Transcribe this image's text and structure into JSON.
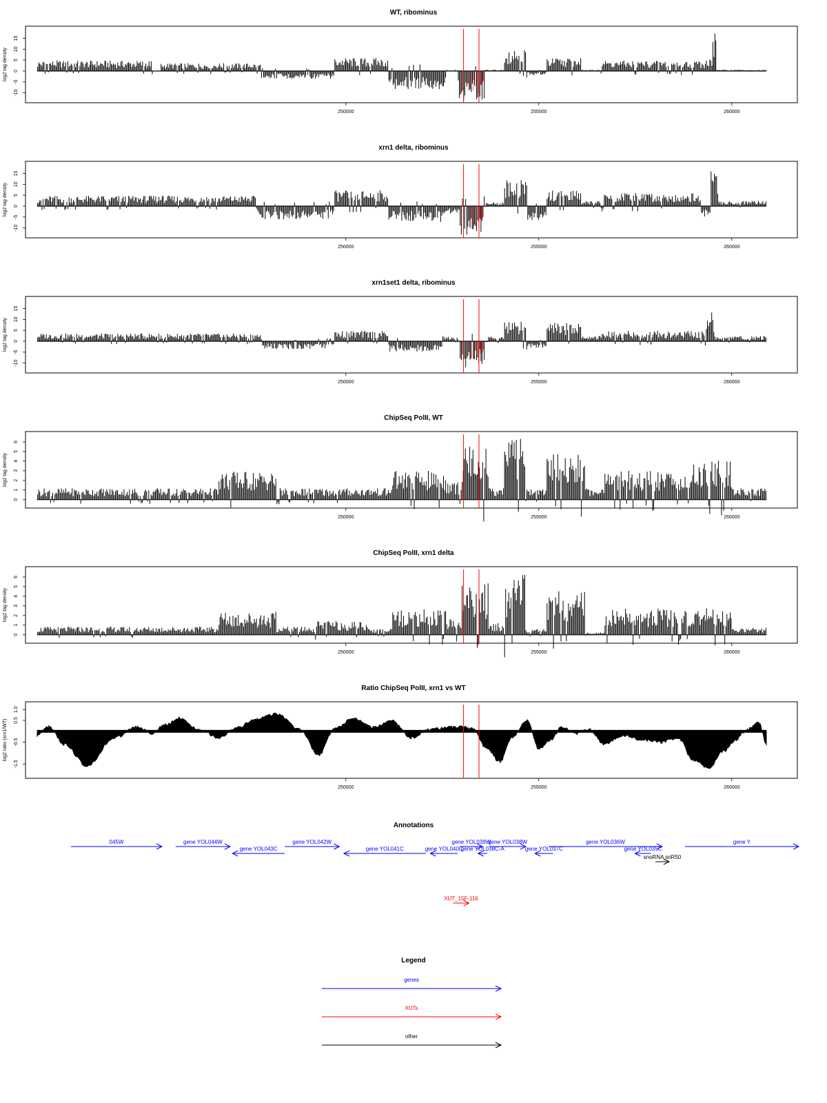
{
  "chart_data": [
    {
      "type": "bar",
      "title": "WT, ribominus",
      "ylabel": "log2 tag density",
      "ylim": [
        -12,
        18
      ],
      "yticks": [
        "-10",
        "-5",
        "0",
        "5",
        "10",
        "15"
      ],
      "xlim": [
        241700,
        261700
      ],
      "xticks": [
        "250000",
        "255000",
        "260000"
      ],
      "marker_lines": [
        253050,
        253450
      ],
      "colors": {
        "bars": "#000000",
        "highlight": "#ff0000"
      },
      "segments": [
        {
          "start": 242000,
          "end": 245000,
          "value": 4
        },
        {
          "start": 245200,
          "end": 247800,
          "value": 3
        },
        {
          "start": 247800,
          "end": 249700,
          "value": -3
        },
        {
          "start": 249700,
          "end": 251100,
          "value": 5
        },
        {
          "start": 251100,
          "end": 252600,
          "value": -7
        },
        {
          "start": 252600,
          "end": 252900,
          "value": 0.5
        },
        {
          "start": 252900,
          "end": 253600,
          "value": -11
        },
        {
          "start": 253600,
          "end": 254100,
          "value": 0.5
        },
        {
          "start": 254100,
          "end": 254700,
          "value": 9
        },
        {
          "start": 254700,
          "end": 255200,
          "value": -1.5
        },
        {
          "start": 255200,
          "end": 256100,
          "value": 5
        },
        {
          "start": 256100,
          "end": 256600,
          "value": 0.5
        },
        {
          "start": 256600,
          "end": 259300,
          "value": 4
        },
        {
          "start": 259300,
          "end": 259500,
          "value": 5
        },
        {
          "start": 259500,
          "end": 259600,
          "value": 17
        },
        {
          "start": 259600,
          "end": 260900,
          "value": 0.5
        }
      ]
    },
    {
      "type": "bar",
      "title": "xrn1 delta, ribominus",
      "ylabel": "log2 tag density",
      "ylim": [
        -12,
        18
      ],
      "yticks": [
        "-10",
        "-5",
        "0",
        "5",
        "10",
        "15"
      ],
      "xlim": [
        241700,
        261700
      ],
      "xticks": [
        "250000",
        "255000",
        "260000"
      ],
      "marker_lines": [
        253050,
        253450
      ],
      "colors": {
        "bars": "#000000",
        "highlight": "#ff0000"
      },
      "segments": [
        {
          "start": 242000,
          "end": 245200,
          "value": 4
        },
        {
          "start": 245200,
          "end": 247700,
          "value": 4
        },
        {
          "start": 247700,
          "end": 249700,
          "value": -5
        },
        {
          "start": 249700,
          "end": 251100,
          "value": 6
        },
        {
          "start": 251100,
          "end": 252500,
          "value": -6
        },
        {
          "start": 252500,
          "end": 252950,
          "value": -3
        },
        {
          "start": 252950,
          "end": 253600,
          "value": -11
        },
        {
          "start": 253600,
          "end": 254100,
          "value": 1.5
        },
        {
          "start": 254100,
          "end": 254700,
          "value": 10
        },
        {
          "start": 254700,
          "end": 255200,
          "value": -6
        },
        {
          "start": 255200,
          "end": 256100,
          "value": 6
        },
        {
          "start": 256100,
          "end": 256600,
          "value": 2
        },
        {
          "start": 256600,
          "end": 259200,
          "value": 5
        },
        {
          "start": 259200,
          "end": 259450,
          "value": -4
        },
        {
          "start": 259450,
          "end": 259650,
          "value": 15
        },
        {
          "start": 259650,
          "end": 260900,
          "value": 2
        }
      ]
    },
    {
      "type": "bar",
      "title": "xrn1set1 delta, ribominus",
      "ylabel": "log2 tag density",
      "ylim": [
        -12,
        18
      ],
      "yticks": [
        "-10",
        "-5",
        "0",
        "5",
        "10",
        "15"
      ],
      "xlim": [
        241700,
        261700
      ],
      "xticks": [
        "250000",
        "255000",
        "260000"
      ],
      "marker_lines": [
        253050,
        253450
      ],
      "colors": {
        "bars": "#000000",
        "highlight": "#ff0000"
      },
      "segments": [
        {
          "start": 242000,
          "end": 245200,
          "value": 3
        },
        {
          "start": 245200,
          "end": 247800,
          "value": 3
        },
        {
          "start": 247800,
          "end": 249700,
          "value": -3
        },
        {
          "start": 249700,
          "end": 251100,
          "value": 4
        },
        {
          "start": 251100,
          "end": 252500,
          "value": -4
        },
        {
          "start": 252500,
          "end": 252950,
          "value": 2
        },
        {
          "start": 252950,
          "end": 253600,
          "value": -10
        },
        {
          "start": 253600,
          "end": 254100,
          "value": 2
        },
        {
          "start": 254100,
          "end": 254700,
          "value": 8
        },
        {
          "start": 254700,
          "end": 255200,
          "value": -3
        },
        {
          "start": 255200,
          "end": 256100,
          "value": 7
        },
        {
          "start": 256100,
          "end": 256600,
          "value": 2
        },
        {
          "start": 256600,
          "end": 259300,
          "value": 4
        },
        {
          "start": 259300,
          "end": 259550,
          "value": 11
        },
        {
          "start": 259550,
          "end": 260900,
          "value": 2
        }
      ]
    },
    {
      "type": "bar",
      "title": "ChipSeq PolII, WT",
      "ylabel": "log2 tag density",
      "ylim": [
        -0.3,
        6.5
      ],
      "yticks": [
        "0",
        "1",
        "2",
        "3",
        "4",
        "5",
        "6"
      ],
      "xlim": [
        241700,
        261700
      ],
      "xticks": [
        "250000",
        "255000",
        "260000"
      ],
      "marker_lines": [
        253050,
        253450
      ],
      "colors": {
        "bars": "#000000",
        "highlight": "#ff0000"
      },
      "segments": [
        {
          "start": 242000,
          "end": 246700,
          "value": 1
        },
        {
          "start": 246700,
          "end": 248200,
          "value": 2.5
        },
        {
          "start": 248200,
          "end": 251200,
          "value": 1
        },
        {
          "start": 251200,
          "end": 252600,
          "value": 2.5
        },
        {
          "start": 252600,
          "end": 253000,
          "value": 1.5
        },
        {
          "start": 253000,
          "end": 253700,
          "value": 5
        },
        {
          "start": 253700,
          "end": 254100,
          "value": 1
        },
        {
          "start": 254100,
          "end": 254650,
          "value": 5.8
        },
        {
          "start": 254650,
          "end": 255200,
          "value": 1
        },
        {
          "start": 255200,
          "end": 256200,
          "value": 4
        },
        {
          "start": 256200,
          "end": 256700,
          "value": 1
        },
        {
          "start": 256700,
          "end": 259000,
          "value": 2.5
        },
        {
          "start": 259000,
          "end": 260000,
          "value": 3.5
        },
        {
          "start": 260000,
          "end": 260900,
          "value": 1
        }
      ]
    },
    {
      "type": "bar",
      "title": "ChipSeq PolII, xrn1 delta",
      "ylabel": "log2 tag density",
      "ylim": [
        -0.3,
        6.5
      ],
      "yticks": [
        "0",
        "1",
        "2",
        "3",
        "4",
        "5",
        "6"
      ],
      "xlim": [
        241700,
        261700
      ],
      "xticks": [
        "250000",
        "255000",
        "260000"
      ],
      "marker_lines": [
        253050,
        253450
      ],
      "colors": {
        "bars": "#000000",
        "highlight": "#ff0000"
      },
      "segments": [
        {
          "start": 242000,
          "end": 246700,
          "value": 0.7
        },
        {
          "start": 246700,
          "end": 248200,
          "value": 2
        },
        {
          "start": 248200,
          "end": 249200,
          "value": 0.7
        },
        {
          "start": 249200,
          "end": 250600,
          "value": 1.2
        },
        {
          "start": 250600,
          "end": 251200,
          "value": 0.5
        },
        {
          "start": 251200,
          "end": 252600,
          "value": 2.2
        },
        {
          "start": 252600,
          "end": 253000,
          "value": 1.5
        },
        {
          "start": 253000,
          "end": 253700,
          "value": 4.6
        },
        {
          "start": 253700,
          "end": 254100,
          "value": 1
        },
        {
          "start": 254100,
          "end": 254650,
          "value": 5.2
        },
        {
          "start": 254650,
          "end": 255200,
          "value": 0.5
        },
        {
          "start": 255200,
          "end": 256200,
          "value": 3.9
        },
        {
          "start": 256200,
          "end": 256700,
          "value": 0.2
        },
        {
          "start": 256700,
          "end": 259000,
          "value": 2.3
        },
        {
          "start": 259000,
          "end": 260000,
          "value": 2.3
        },
        {
          "start": 260000,
          "end": 260900,
          "value": 0.6
        }
      ]
    },
    {
      "type": "area",
      "title": "Ratio ChipSeq PolII, xrn1 vs WT",
      "ylabel": "log2 ratio (xrn1/WT)",
      "ylim": [
        -1.9,
        1.1
      ],
      "yticks": [
        "-1.5",
        "-0.5",
        "0.5",
        "1.0"
      ],
      "xlim": [
        241700,
        261700
      ],
      "xticks": [
        "250000",
        "255000",
        "260000"
      ],
      "marker_lines": [
        253050,
        253450
      ],
      "colors": {
        "fill": "#000000",
        "highlight": "#ff0000"
      },
      "baseline": 0,
      "x": [
        242000,
        242300,
        242700,
        243300,
        244000,
        244600,
        245000,
        245300,
        245700,
        246200,
        246700,
        247200,
        247700,
        248200,
        248800,
        249300,
        249700,
        250200,
        250700,
        251200,
        251700,
        252200,
        252700,
        253000,
        253300,
        253600,
        254000,
        254300,
        254700,
        255000,
        255300,
        255600,
        256000,
        256300,
        256700,
        257200,
        257700,
        258200,
        258600,
        259000,
        259400,
        259800,
        260100,
        260400,
        260700,
        260900
      ],
      "y": [
        -0.2,
        0.25,
        -0.6,
        -1.6,
        -0.3,
        0.2,
        -0.1,
        0.3,
        0.6,
        0.1,
        -0.3,
        0.2,
        0.6,
        0.8,
        0.1,
        -1.1,
        0.1,
        0.6,
        0.2,
        0.5,
        -0.3,
        0.1,
        0.2,
        0.2,
        0.1,
        -0.7,
        -1.4,
        -0.3,
        0.5,
        -0.8,
        -0.4,
        0.2,
        -0.1,
        0.1,
        -0.6,
        -0.2,
        -0.4,
        -0.5,
        -0.3,
        -1.3,
        -1.7,
        -0.9,
        -0.4,
        0.1,
        0.4,
        -0.6
      ]
    }
  ],
  "annotations": {
    "title": "Annotations",
    "genes": [
      {
        "label": "045W",
        "start": 240000,
        "end": 244000,
        "strand": "+",
        "row": 0
      },
      {
        "label": "gene YOL044W",
        "start": 244600,
        "end": 247000,
        "strand": "+",
        "row": 0
      },
      {
        "label": "gene YOL043C",
        "start": 247100,
        "end": 249400,
        "strand": "-",
        "row": 1
      },
      {
        "label": "gene YOL042W",
        "start": 249400,
        "end": 251800,
        "strand": "+",
        "row": 0
      },
      {
        "label": "gene YOL041C",
        "start": 252000,
        "end": 255600,
        "strand": "-",
        "row": 1
      },
      {
        "label": "gene YOL040C",
        "start": 255800,
        "end": 257000,
        "strand": "-",
        "row": 1
      },
      {
        "label": "gene YOL039W",
        "start": 257100,
        "end": 258100,
        "strand": "+",
        "row": 0
      },
      {
        "label": "gene YOL038C-A",
        "start": 257900,
        "end": 258300,
        "strand": "-",
        "row": 1
      },
      {
        "label": "gene YOL038W",
        "start": 258400,
        "end": 260000,
        "strand": "+",
        "row": 0
      },
      {
        "label": "gene YOL037C",
        "start": 260400,
        "end": 261200,
        "strand": "-",
        "row": 1
      },
      {
        "label": "gene YOL036W",
        "start": 261000,
        "end": 266000,
        "strand": "+",
        "row": 0
      },
      {
        "label": "gene YOL035C",
        "start": 264800,
        "end": 265500,
        "strand": "-",
        "row": 1
      },
      {
        "label": "gene Y",
        "start": 267000,
        "end": 273000,
        "strand": "+",
        "row": 0
      }
    ],
    "other": [
      {
        "label": "snoRNA snR50",
        "start": 265700,
        "end": 266300,
        "strand": "+"
      }
    ],
    "xuts": [
      {
        "label": "XUT_15F-116",
        "start": 256800,
        "end": 257500,
        "strand": "+"
      }
    ]
  },
  "legend": {
    "title": "Legend",
    "entries": [
      {
        "label": "genes",
        "color": "#0000ff"
      },
      {
        "label": "XUTs",
        "color": "#ff0000"
      },
      {
        "label": "other",
        "color": "#000000"
      }
    ]
  }
}
